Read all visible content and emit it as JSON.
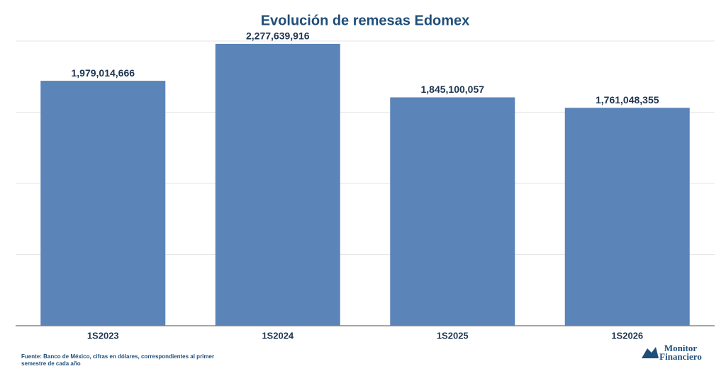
{
  "chart_data": {
    "type": "bar",
    "title": "Evolución de remesas Edomex",
    "categories": [
      "1S2023",
      "1S2024",
      "1S2025",
      "1S2026"
    ],
    "values": [
      1979014666,
      2277639916,
      1845100057,
      1761048355
    ],
    "value_labels": [
      "1,979,014,666",
      "2,277,639,916",
      "1,845,100,057",
      "1,761,048,355"
    ],
    "color": "#5b84b8",
    "ylim": [
      0,
      2300000000
    ],
    "yticks": [
      0,
      575000000,
      1150000000,
      1725000000,
      2300000000
    ],
    "grid": true,
    "source": "Fuente: Banco de México, cifras en dólares, correspondientes al primer semestre de cada año",
    "logo": [
      "Monitor",
      "Financiero"
    ]
  }
}
